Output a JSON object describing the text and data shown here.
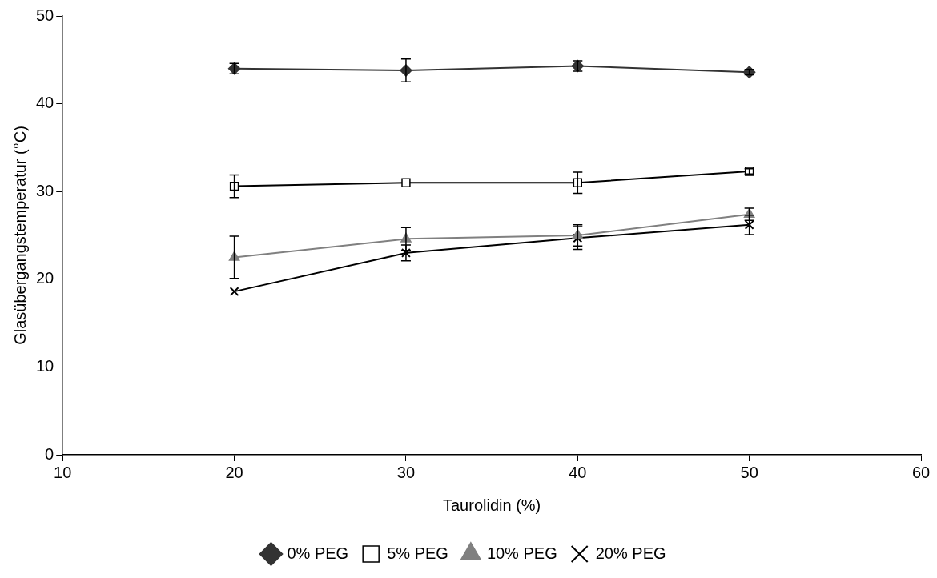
{
  "chart_data": {
    "type": "line",
    "xlabel": "Taurolidin (%)",
    "ylabel": "Glasübergangstemperatur (°C)",
    "x": [
      20,
      30,
      40,
      50
    ],
    "xlim": [
      10,
      60
    ],
    "xticks": [
      10,
      20,
      30,
      40,
      50,
      60
    ],
    "ylim": [
      0,
      50
    ],
    "yticks": [
      0,
      10,
      20,
      30,
      40,
      50
    ],
    "grid": false,
    "legend": "bottom",
    "line_style": "solid",
    "series": [
      {
        "name": "0% PEG",
        "color": "#333333",
        "marker": "diamond",
        "values": [
          44.0,
          43.8,
          44.3,
          43.6
        ],
        "errors": [
          0.6,
          1.3,
          0.6,
          0.3
        ]
      },
      {
        "name": "5% PEG",
        "color": "#000000",
        "marker": "square",
        "values": [
          30.6,
          31.0,
          31.0,
          32.3
        ],
        "errors": [
          1.3,
          null,
          1.2,
          0.3
        ]
      },
      {
        "name": "10% PEG",
        "color": "#808080",
        "marker": "triangle",
        "values": [
          22.5,
          24.6,
          25.0,
          27.4
        ],
        "errors": [
          2.4,
          1.3,
          1.2,
          0.7
        ]
      },
      {
        "name": "20% PEG",
        "color": "#000000",
        "marker": "cross",
        "values": [
          18.6,
          23.0,
          24.7,
          26.2
        ],
        "errors": [
          null,
          0.9,
          1.3,
          1.1
        ]
      }
    ]
  }
}
